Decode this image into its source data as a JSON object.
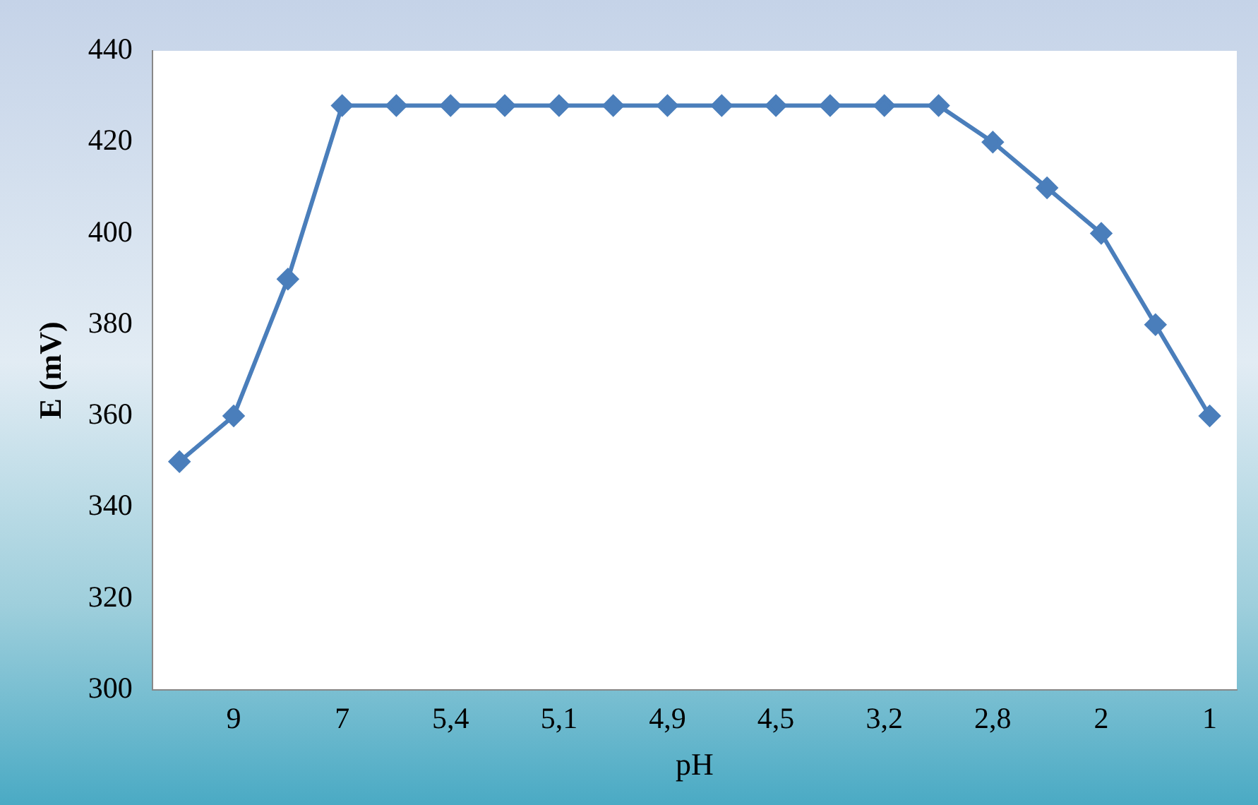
{
  "chart_data": {
    "type": "line",
    "xlabel": "pH",
    "ylabel": "E (mV)",
    "categories": [
      null,
      "9",
      null,
      "7",
      null,
      "5,4",
      null,
      "5,1",
      null,
      "4,9",
      null,
      "4,5",
      null,
      "3,2",
      null,
      "2,8",
      null,
      "2",
      null,
      "1"
    ],
    "series": [
      {
        "color": "#4a7ebb",
        "values": [
          350,
          360,
          390,
          428,
          428,
          428,
          428,
          428,
          428,
          428,
          428,
          428,
          428,
          428,
          428,
          420,
          410,
          400,
          380,
          360
        ]
      }
    ],
    "ylim": [
      300,
      440
    ],
    "yticks": [
      300,
      320,
      340,
      360,
      380,
      400,
      420,
      440
    ],
    "grid": false,
    "legend": false,
    "marker": "diamond",
    "line_style": "solid"
  }
}
